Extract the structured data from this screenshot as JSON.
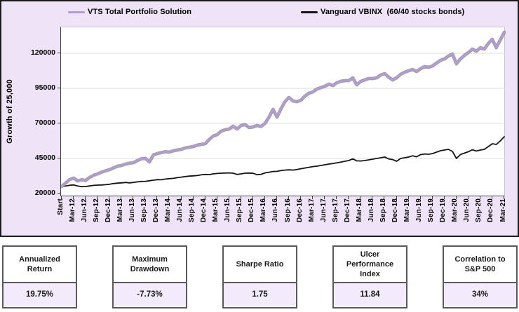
{
  "colors": {
    "panel_background": "#efe4f7",
    "plot_background": "#ffffff",
    "gridline": "#dcdcdc",
    "axis": "#404040",
    "vts_purple": "#b39bd8",
    "vts_halo": "#909090",
    "vbinx_black": "#141414",
    "stat_value_background": "#f3ebfb",
    "stat_border": "#595959"
  },
  "chart_data": {
    "type": "line",
    "title": "",
    "xlabel": "",
    "ylabel": "Growth of 25,000",
    "ylim": [
      20000,
      140000
    ],
    "yticks": [
      20000,
      45000,
      70000,
      95000,
      120000
    ],
    "grid": true,
    "legend_position": "top",
    "x_labels": [
      "Start",
      "Mar-12",
      "Jun-12",
      "Sep-12",
      "Dec-12",
      "Mar-13",
      "Jun-13",
      "Sep-13",
      "Dec-13",
      "Mar-14",
      "Jun-14",
      "Sep-14",
      "Dec-14",
      "Mar-15",
      "Jun-15",
      "Sep-15",
      "Dec-15",
      "Mar-16",
      "Jun-16",
      "Sep-16",
      "Dec-16",
      "Mar-17",
      "Jun-17",
      "Sep-17",
      "Dec-17",
      "Mar-18",
      "Jun-18",
      "Sep-18",
      "Dec-18",
      "Mar-19",
      "Jun-19",
      "Sep-19",
      "Dec-19",
      "Mar-20",
      "Jun-20",
      "Sep-20",
      "Dec-20",
      "Mar-21"
    ],
    "points_per_label": 3,
    "series": [
      {
        "name": "VTS Total Portfolio Solution",
        "color": "#b39bd8",
        "values": [
          25000,
          27500,
          30000,
          31000,
          29000,
          29800,
          29300,
          31500,
          33000,
          34000,
          35200,
          36200,
          37000,
          38300,
          39500,
          40000,
          41000,
          41600,
          42000,
          43500,
          44800,
          45000,
          42500,
          47500,
          48500,
          49200,
          49800,
          49500,
          50500,
          51000,
          51500,
          52500,
          53000,
          53500,
          54500,
          55000,
          55500,
          58500,
          61000,
          62000,
          64500,
          65500,
          66000,
          68000,
          66000,
          68500,
          69200,
          67000,
          67500,
          68500,
          67800,
          70000,
          74500,
          80000,
          74500,
          80500,
          85500,
          88500,
          86000,
          85500,
          86500,
          89500,
          91500,
          92500,
          94500,
          95500,
          96500,
          98000,
          97000,
          99000,
          100000,
          100500,
          100500,
          102500,
          97500,
          100000,
          101000,
          102000,
          102000,
          102500,
          104500,
          105500,
          103000,
          101000,
          102500,
          105000,
          106500,
          107500,
          108500,
          107000,
          109000,
          110500,
          110000,
          111000,
          113000,
          115000,
          116000,
          118000,
          119500,
          112500,
          116000,
          118500,
          120500,
          123000,
          121500,
          124000,
          123000,
          127000,
          130000,
          124000,
          129500,
          135000
        ]
      },
      {
        "name": "Vanguard VBINX  (60/40 stocks bonds)",
        "color": "#141414",
        "values": [
          25000,
          25400,
          25900,
          26100,
          25400,
          24900,
          25000,
          25400,
          25800,
          26000,
          26100,
          26300,
          26600,
          27100,
          27400,
          27600,
          27900,
          27600,
          27900,
          28300,
          28600,
          28700,
          29100,
          29500,
          29900,
          29800,
          30300,
          30600,
          30800,
          31300,
          31700,
          32100,
          32400,
          32600,
          32800,
          33300,
          33600,
          33500,
          34000,
          34300,
          34500,
          34600,
          34700,
          34500,
          33600,
          34000,
          34500,
          34600,
          34400,
          33400,
          33700,
          34700,
          35200,
          35700,
          35800,
          36400,
          36700,
          36900,
          36700,
          37100,
          37700,
          38200,
          38700,
          39200,
          39500,
          40000,
          40500,
          41000,
          41400,
          41900,
          42400,
          43000,
          43500,
          44700,
          43300,
          43200,
          43500,
          44000,
          44500,
          45000,
          45500,
          46000,
          44700,
          44200,
          43000,
          45000,
          45500,
          46000,
          46900,
          46200,
          47700,
          48200,
          48000,
          48500,
          49500,
          50500,
          51000,
          51500,
          50000,
          45000,
          47800,
          48800,
          49800,
          51200,
          50300,
          51000,
          51500,
          53500,
          55500,
          55000,
          57500,
          60500
        ]
      }
    ]
  },
  "stats": [
    {
      "label": "Annualized Return",
      "value": "19.75%"
    },
    {
      "label": "Maximum Drawdown",
      "value": "-7.73%"
    },
    {
      "label": "Sharpe Ratio",
      "value": "1.75"
    },
    {
      "label": "Ulcer Performance Index",
      "value": "11.84"
    },
    {
      "label": "Correlation to S&P 500",
      "value": "34%"
    }
  ]
}
